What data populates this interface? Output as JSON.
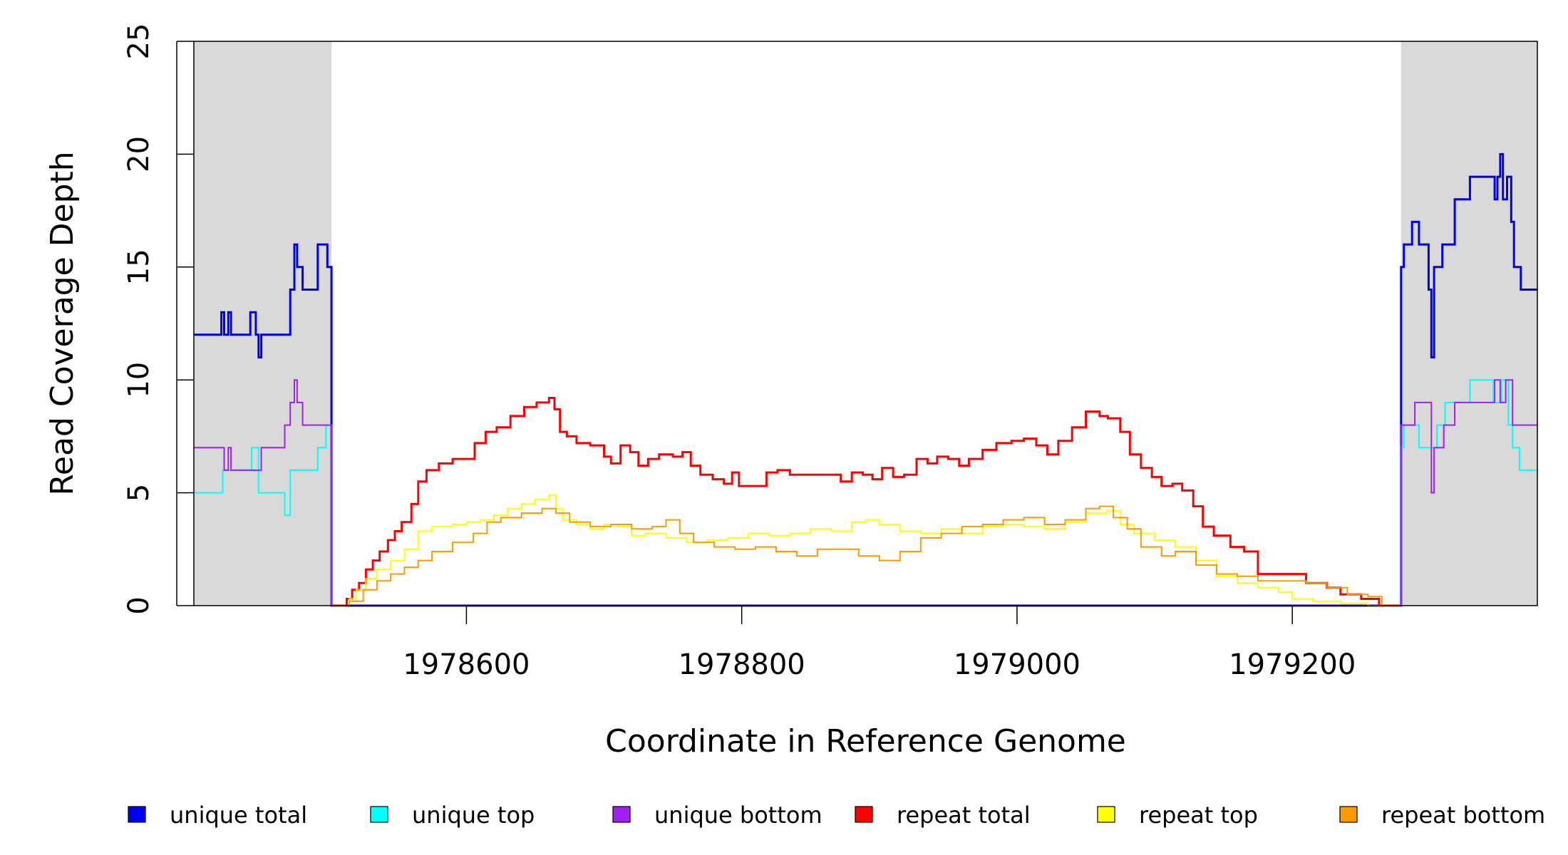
{
  "chart_data": {
    "type": "line",
    "xlabel": "Coordinate in Reference Genome",
    "ylabel": "Read Coverage Depth",
    "xlim": [
      1978402,
      1979378
    ],
    "ylim": [
      0,
      25
    ],
    "x_ticks": [
      1978600,
      1978800,
      1979000,
      1979200
    ],
    "x_tick_labels": [
      "1978600",
      "1978800",
      "1979000",
      "1979200"
    ],
    "y_ticks": [
      0,
      5,
      10,
      15,
      20,
      25
    ],
    "y_tick_labels": [
      "0",
      "5",
      "10",
      "15",
      "20",
      "25"
    ],
    "shaded_regions": [
      {
        "x0": 1978402,
        "x1": 1978502,
        "color": "#d9d9d9"
      },
      {
        "x0": 1979279,
        "x1": 1979378,
        "color": "#d9d9d9"
      }
    ],
    "legend_placement": "bottom",
    "grid": false,
    "series": [
      {
        "name": "unique total",
        "color": "#0000ee",
        "width": 3,
        "step": true,
        "points": [
          [
            1978402,
            12
          ],
          [
            1978422,
            13
          ],
          [
            1978424,
            12
          ],
          [
            1978427,
            13
          ],
          [
            1978429,
            12
          ],
          [
            1978443,
            13
          ],
          [
            1978447,
            12
          ],
          [
            1978449,
            11
          ],
          [
            1978451,
            12
          ],
          [
            1978472,
            14
          ],
          [
            1978475,
            16
          ],
          [
            1978477,
            15
          ],
          [
            1978481,
            14
          ],
          [
            1978492,
            16
          ],
          [
            1978499,
            15
          ],
          [
            1978502,
            0
          ],
          [
            1979279,
            15
          ],
          [
            1979281,
            16
          ],
          [
            1979287,
            17
          ],
          [
            1979292,
            16
          ],
          [
            1979299,
            14
          ],
          [
            1979301,
            11
          ],
          [
            1979303,
            15
          ],
          [
            1979309,
            16
          ],
          [
            1979318,
            18
          ],
          [
            1979329,
            19
          ],
          [
            1979347,
            18
          ],
          [
            1979349,
            19
          ],
          [
            1979351,
            20
          ],
          [
            1979353,
            18
          ],
          [
            1979356,
            19
          ],
          [
            1979359,
            17
          ],
          [
            1979361,
            15
          ],
          [
            1979366,
            14
          ],
          [
            1979378,
            14
          ]
        ]
      },
      {
        "name": "unique top",
        "color": "#00ffff",
        "width": 2,
        "step": true,
        "points": [
          [
            1978402,
            5
          ],
          [
            1978423,
            6
          ],
          [
            1978444,
            7
          ],
          [
            1978449,
            5
          ],
          [
            1978468,
            4
          ],
          [
            1978472,
            6
          ],
          [
            1978492,
            7
          ],
          [
            1978498,
            8
          ],
          [
            1978502,
            0
          ],
          [
            1979279,
            7
          ],
          [
            1979281,
            8
          ],
          [
            1979292,
            7
          ],
          [
            1979302,
            7
          ],
          [
            1979305,
            8
          ],
          [
            1979311,
            9
          ],
          [
            1979329,
            10
          ],
          [
            1979346,
            9
          ],
          [
            1979352,
            10
          ],
          [
            1979357,
            8
          ],
          [
            1979360,
            7
          ],
          [
            1979365,
            6
          ],
          [
            1979378,
            6
          ]
        ]
      },
      {
        "name": "unique bottom",
        "color": "#a020f0",
        "width": 2,
        "step": true,
        "points": [
          [
            1978402,
            7
          ],
          [
            1978424,
            6
          ],
          [
            1978427,
            7
          ],
          [
            1978429,
            6
          ],
          [
            1978451,
            7
          ],
          [
            1978468,
            8
          ],
          [
            1978472,
            9
          ],
          [
            1978475,
            10
          ],
          [
            1978477,
            9
          ],
          [
            1978481,
            8
          ],
          [
            1978499,
            8
          ],
          [
            1978502,
            0
          ],
          [
            1979279,
            8
          ],
          [
            1979289,
            9
          ],
          [
            1979301,
            5
          ],
          [
            1979303,
            7
          ],
          [
            1979310,
            8
          ],
          [
            1979318,
            9
          ],
          [
            1979347,
            10
          ],
          [
            1979351,
            9
          ],
          [
            1979355,
            10
          ],
          [
            1979360,
            8
          ],
          [
            1979378,
            8
          ]
        ]
      },
      {
        "name": "repeat total",
        "color": "#ff0000",
        "width": 3,
        "step": true,
        "points": [
          [
            1978502,
            0
          ],
          [
            1978513,
            0.3
          ],
          [
            1978517,
            0.7
          ],
          [
            1978522,
            1
          ],
          [
            1978527,
            1.6
          ],
          [
            1978532,
            2
          ],
          [
            1978537,
            2.4
          ],
          [
            1978543,
            2.9
          ],
          [
            1978548,
            3.3
          ],
          [
            1978553,
            3.7
          ],
          [
            1978560,
            4.5
          ],
          [
            1978565,
            5.5
          ],
          [
            1978571,
            6
          ],
          [
            1978580,
            6.3
          ],
          [
            1978590,
            6.5
          ],
          [
            1978598,
            6.5
          ],
          [
            1978606,
            7.2
          ],
          [
            1978614,
            7.7
          ],
          [
            1978622,
            7.9
          ],
          [
            1978632,
            8.4
          ],
          [
            1978642,
            8.8
          ],
          [
            1978651,
            9
          ],
          [
            1978660,
            9.2
          ],
          [
            1978664,
            8.7
          ],
          [
            1978668,
            7.7
          ],
          [
            1978673,
            7.5
          ],
          [
            1978680,
            7.2
          ],
          [
            1978690,
            7.1
          ],
          [
            1978700,
            6.6
          ],
          [
            1978705,
            6.3
          ],
          [
            1978712,
            7.1
          ],
          [
            1978719,
            6.8
          ],
          [
            1978725,
            6.2
          ],
          [
            1978732,
            6.5
          ],
          [
            1978740,
            6.7
          ],
          [
            1978750,
            6.6
          ],
          [
            1978757,
            6.8
          ],
          [
            1978763,
            6.2
          ],
          [
            1978770,
            5.8
          ],
          [
            1978779,
            5.6
          ],
          [
            1978787,
            5.4
          ],
          [
            1978793,
            5.9
          ],
          [
            1978798,
            5.3
          ],
          [
            1978810,
            5.3
          ],
          [
            1978818,
            5.9
          ],
          [
            1978826,
            6
          ],
          [
            1978835,
            5.8
          ],
          [
            1978848,
            5.8
          ],
          [
            1978860,
            5.8
          ],
          [
            1978872,
            5.5
          ],
          [
            1978880,
            5.9
          ],
          [
            1978888,
            5.8
          ],
          [
            1978895,
            5.6
          ],
          [
            1978902,
            6.1
          ],
          [
            1978910,
            5.7
          ],
          [
            1978918,
            5.8
          ],
          [
            1978927,
            6.5
          ],
          [
            1978935,
            6.3
          ],
          [
            1978942,
            6.6
          ],
          [
            1978950,
            6.5
          ],
          [
            1978958,
            6.2
          ],
          [
            1978965,
            6.5
          ],
          [
            1978975,
            6.9
          ],
          [
            1978985,
            7.2
          ],
          [
            1978996,
            7.3
          ],
          [
            1979005,
            7.4
          ],
          [
            1979014,
            7.1
          ],
          [
            1979022,
            6.7
          ],
          [
            1979030,
            7.3
          ],
          [
            1979040,
            7.9
          ],
          [
            1979050,
            8.6
          ],
          [
            1979060,
            8.4
          ],
          [
            1979066,
            8.3
          ],
          [
            1979075,
            7.7
          ],
          [
            1979082,
            6.7
          ],
          [
            1979090,
            6.1
          ],
          [
            1979098,
            5.7
          ],
          [
            1979105,
            5.3
          ],
          [
            1979113,
            5.4
          ],
          [
            1979120,
            5.1
          ],
          [
            1979128,
            4.4
          ],
          [
            1979135,
            3.5
          ],
          [
            1979143,
            3.1
          ],
          [
            1979155,
            2.6
          ],
          [
            1979165,
            2.4
          ],
          [
            1979175,
            1.4
          ],
          [
            1979187,
            1.4
          ],
          [
            1979200,
            1.4
          ],
          [
            1979210,
            1
          ],
          [
            1979225,
            0.8
          ],
          [
            1979235,
            0.5
          ],
          [
            1979250,
            0.3
          ],
          [
            1979263,
            0
          ],
          [
            1979279,
            0
          ]
        ]
      },
      {
        "name": "repeat top",
        "color": "#ffff00",
        "width": 2,
        "step": true,
        "points": [
          [
            1978502,
            0
          ],
          [
            1978515,
            0.3
          ],
          [
            1978520,
            0.7
          ],
          [
            1978527,
            1.2
          ],
          [
            1978535,
            1.6
          ],
          [
            1978545,
            2
          ],
          [
            1978555,
            2.5
          ],
          [
            1978565,
            3.3
          ],
          [
            1978575,
            3.5
          ],
          [
            1978590,
            3.6
          ],
          [
            1978600,
            3.7
          ],
          [
            1978610,
            3.8
          ],
          [
            1978620,
            4
          ],
          [
            1978630,
            4.3
          ],
          [
            1978640,
            4.5
          ],
          [
            1978650,
            4.7
          ],
          [
            1978660,
            4.9
          ],
          [
            1978665,
            4.3
          ],
          [
            1978670,
            3.8
          ],
          [
            1978680,
            3.6
          ],
          [
            1978690,
            3.4
          ],
          [
            1978700,
            3.6
          ],
          [
            1978710,
            3.5
          ],
          [
            1978720,
            3.1
          ],
          [
            1978730,
            3.2
          ],
          [
            1978745,
            3
          ],
          [
            1978760,
            2.8
          ],
          [
            1978775,
            2.9
          ],
          [
            1978790,
            3
          ],
          [
            1978805,
            3.2
          ],
          [
            1978820,
            3.1
          ],
          [
            1978835,
            3.2
          ],
          [
            1978850,
            3.4
          ],
          [
            1978865,
            3.3
          ],
          [
            1978880,
            3.7
          ],
          [
            1978890,
            3.8
          ],
          [
            1978900,
            3.6
          ],
          [
            1978915,
            3.3
          ],
          [
            1978930,
            3.2
          ],
          [
            1978945,
            3.4
          ],
          [
            1978960,
            3.2
          ],
          [
            1978975,
            3.5
          ],
          [
            1978990,
            3.6
          ],
          [
            1979005,
            3.5
          ],
          [
            1979020,
            3.4
          ],
          [
            1979035,
            3.7
          ],
          [
            1979050,
            4.1
          ],
          [
            1979065,
            4.2
          ],
          [
            1979075,
            3.6
          ],
          [
            1979085,
            3.2
          ],
          [
            1979100,
            2.9
          ],
          [
            1979115,
            2.6
          ],
          [
            1979130,
            2
          ],
          [
            1979145,
            1.3
          ],
          [
            1979160,
            1
          ],
          [
            1979175,
            0.8
          ],
          [
            1979190,
            0.6
          ],
          [
            1979200,
            0.3
          ],
          [
            1979215,
            0.2
          ],
          [
            1979235,
            0.1
          ],
          [
            1979255,
            0
          ],
          [
            1979279,
            0
          ]
        ]
      },
      {
        "name": "repeat bottom",
        "color": "#ff9900",
        "width": 2,
        "step": true,
        "points": [
          [
            1978502,
            0
          ],
          [
            1978515,
            0.2
          ],
          [
            1978525,
            0.7
          ],
          [
            1978535,
            1.1
          ],
          [
            1978545,
            1.4
          ],
          [
            1978555,
            1.7
          ],
          [
            1978565,
            2
          ],
          [
            1978575,
            2.4
          ],
          [
            1978590,
            2.8
          ],
          [
            1978605,
            3.2
          ],
          [
            1978615,
            3.7
          ],
          [
            1978625,
            3.9
          ],
          [
            1978640,
            4.1
          ],
          [
            1978655,
            4.3
          ],
          [
            1978665,
            4.1
          ],
          [
            1978675,
            3.7
          ],
          [
            1978690,
            3.5
          ],
          [
            1978705,
            3.6
          ],
          [
            1978720,
            3.4
          ],
          [
            1978735,
            3.5
          ],
          [
            1978745,
            3.8
          ],
          [
            1978755,
            3.2
          ],
          [
            1978765,
            2.8
          ],
          [
            1978780,
            2.6
          ],
          [
            1978795,
            2.5
          ],
          [
            1978810,
            2.6
          ],
          [
            1978825,
            2.4
          ],
          [
            1978840,
            2.2
          ],
          [
            1978855,
            2.5
          ],
          [
            1978870,
            2.5
          ],
          [
            1978885,
            2.2
          ],
          [
            1978900,
            2
          ],
          [
            1978915,
            2.4
          ],
          [
            1978930,
            3
          ],
          [
            1978945,
            3.2
          ],
          [
            1978960,
            3.5
          ],
          [
            1978975,
            3.6
          ],
          [
            1978990,
            3.8
          ],
          [
            1979005,
            3.9
          ],
          [
            1979020,
            3.6
          ],
          [
            1979035,
            3.8
          ],
          [
            1979050,
            4.3
          ],
          [
            1979060,
            4.4
          ],
          [
            1979070,
            3.9
          ],
          [
            1979080,
            3.4
          ],
          [
            1979090,
            2.6
          ],
          [
            1979105,
            2.2
          ],
          [
            1979115,
            2.4
          ],
          [
            1979130,
            1.8
          ],
          [
            1979145,
            1.4
          ],
          [
            1979160,
            1.3
          ],
          [
            1979175,
            1.1
          ],
          [
            1979195,
            1.1
          ],
          [
            1979210,
            1
          ],
          [
            1979225,
            0.8
          ],
          [
            1979240,
            0.5
          ],
          [
            1979255,
            0.4
          ],
          [
            1979265,
            0
          ],
          [
            1979279,
            0
          ]
        ]
      }
    ]
  }
}
